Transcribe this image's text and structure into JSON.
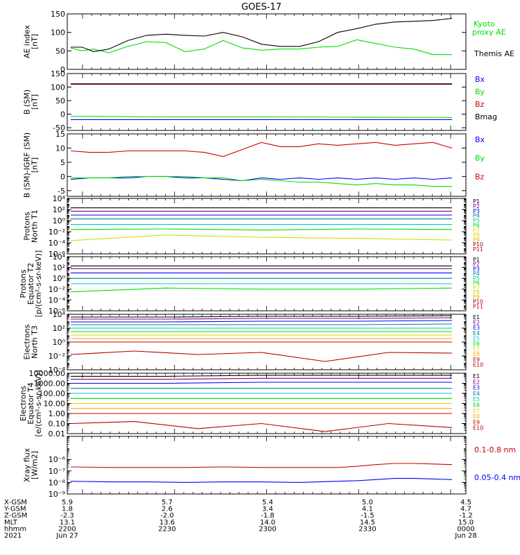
{
  "title": "GOES-17",
  "colors": {
    "frame": "#000000",
    "black": "#000000",
    "blue": "#0000ff",
    "green": "#00dd00",
    "red": "#cc0000",
    "navy": "#000080",
    "purple": "#800080",
    "cyan": "#00c8c8",
    "teal": "#008080",
    "yellow": "#d8d800",
    "orange": "#ffa500",
    "maroon": "#8b0000",
    "dkred": "#b00000"
  },
  "chart_data": [
    {
      "type": "line",
      "id": "ae",
      "ylabel": [
        "AE index",
        "[nT]"
      ],
      "ylim": [
        0,
        150
      ],
      "yticks": [
        "0",
        "50",
        "100",
        "150"
      ],
      "x": [
        0,
        0.03,
        0.06,
        0.1,
        0.15,
        0.2,
        0.25,
        0.3,
        0.35,
        0.4,
        0.45,
        0.5,
        0.55,
        0.6,
        0.65,
        0.7,
        0.75,
        0.8,
        0.85,
        0.9,
        0.95,
        1.0
      ],
      "series": [
        {
          "name": "Kyoto proxy AE",
          "color": "#00dd00",
          "values": [
            58,
            50,
            55,
            45,
            62,
            75,
            72,
            48,
            55,
            78,
            58,
            52,
            55,
            55,
            60,
            62,
            80,
            70,
            60,
            55,
            40,
            40
          ]
        },
        {
          "name": "Themis AE",
          "color": "#000000",
          "values": [
            60,
            60,
            48,
            55,
            78,
            92,
            95,
            92,
            90,
            100,
            88,
            68,
            62,
            62,
            75,
            100,
            110,
            122,
            128,
            130,
            132,
            138
          ]
        }
      ],
      "legend": [
        {
          "text": "Kyoto",
          "color": "#00dd00"
        },
        {
          "text": "proxy AE",
          "color": "#00dd00"
        },
        {
          "text": "Themis AE",
          "color": "#000000"
        }
      ]
    },
    {
      "type": "line",
      "id": "b_sm",
      "ylabel": [
        "B (SM)",
        "[nT]"
      ],
      "ylim": [
        -60,
        150
      ],
      "yticks": [
        "-50",
        "0",
        "50",
        "100",
        "150"
      ],
      "x": [
        0,
        0.25,
        0.5,
        0.75,
        1.0
      ],
      "series": [
        {
          "name": "Bx",
          "color": "#0000ff",
          "values": [
            -20,
            -20,
            -20,
            -20,
            -20
          ]
        },
        {
          "name": "By",
          "color": "#00dd00",
          "values": [
            -8,
            -10,
            -10,
            -11,
            -12
          ]
        },
        {
          "name": "Bz",
          "color": "#cc0000",
          "values": [
            110,
            110,
            110,
            110,
            110
          ]
        },
        {
          "name": "Bmag",
          "color": "#000000",
          "values": [
            112,
            112,
            112,
            112,
            112
          ]
        }
      ],
      "legend": [
        {
          "text": "Bx",
          "color": "#0000ff"
        },
        {
          "text": "By",
          "color": "#00dd00"
        },
        {
          "text": "Bz",
          "color": "#cc0000"
        },
        {
          "text": "Bmag",
          "color": "#000000"
        }
      ]
    },
    {
      "type": "line",
      "id": "b_sm_igrf",
      "ylabel": [
        "B (SM)-IGRF (SM)",
        "[nT]"
      ],
      "ylim": [
        -7,
        15
      ],
      "yticks": [
        "-5",
        "0",
        "5",
        "10",
        "15"
      ],
      "x": [
        0,
        0.05,
        0.1,
        0.15,
        0.2,
        0.25,
        0.3,
        0.35,
        0.4,
        0.45,
        0.5,
        0.55,
        0.6,
        0.65,
        0.7,
        0.75,
        0.8,
        0.85,
        0.9,
        0.95,
        1.0
      ],
      "series": [
        {
          "name": "Bx",
          "color": "#0000ff",
          "values": [
            -1,
            -0.5,
            -0.5,
            -0.5,
            0,
            0,
            -0.5,
            -0.5,
            -1,
            -1.5,
            -0.5,
            -1,
            -0.5,
            -1,
            -0.5,
            -1,
            -0.5,
            -1,
            -0.5,
            -1,
            -0.5
          ]
        },
        {
          "name": "By",
          "color": "#00dd00",
          "values": [
            -0.5,
            -0.5,
            -0.5,
            0,
            0,
            0,
            0,
            -0.5,
            -0.5,
            -1.5,
            -1,
            -1.5,
            -2,
            -2,
            -2.5,
            -3,
            -2.5,
            -3,
            -3,
            -3.5,
            -3.5
          ]
        },
        {
          "name": "Bz",
          "color": "#cc0000",
          "values": [
            9,
            8.5,
            8.5,
            9,
            9,
            9,
            9,
            8.5,
            7,
            9.5,
            12,
            10.5,
            10.5,
            11.5,
            11,
            11.5,
            12,
            11,
            11.5,
            12,
            10
          ]
        }
      ],
      "legend": [
        {
          "text": "Bx",
          "color": "#0000ff"
        },
        {
          "text": "By",
          "color": "#00dd00"
        },
        {
          "text": "Bz",
          "color": "#cc0000"
        }
      ]
    },
    {
      "type": "line",
      "id": "protons_t1",
      "ylabel": [
        "Protons",
        "North T1"
      ],
      "ylog": true,
      "ylim_exp": [
        -6,
        4
      ],
      "yticks": [
        "10⁴",
        "10²",
        "10⁰",
        "10⁻²",
        "10⁻⁴",
        "10⁻⁶"
      ],
      "series": [
        {
          "name": "P1",
          "color": "#000000",
          "log_values": [
            2.3,
            2.3,
            2.3,
            2.3,
            2.3
          ]
        },
        {
          "name": "P2",
          "color": "#800080",
          "log_values": [
            1.7,
            1.7,
            1.7,
            1.7,
            1.7
          ]
        },
        {
          "name": "P3",
          "color": "#0000ff",
          "log_values": [
            1.0,
            1.0,
            1.0,
            1.0,
            1.0
          ]
        },
        {
          "name": "P4",
          "color": "#008080",
          "log_values": [
            0.3,
            0.3,
            0.3,
            0.3,
            0.3
          ]
        },
        {
          "name": "P5",
          "color": "#00c8c8",
          "log_values": [
            -0.7,
            -0.7,
            -0.7,
            -0.7,
            -0.7
          ]
        },
        {
          "name": "P6",
          "color": "#00dd00",
          "log_values": [
            -1.6,
            -1.5,
            -1.7,
            -1.5,
            -1.6
          ]
        },
        {
          "name": "P7",
          "color": "#d8d800",
          "log_values": [
            -3.6,
            -2.6,
            -3.0,
            -3.2,
            -3.5
          ]
        }
      ],
      "legend": [
        {
          "text": "P1",
          "color": "#000000"
        },
        {
          "text": "P2",
          "color": "#800080"
        },
        {
          "text": "P3",
          "color": "#0000ff"
        },
        {
          "text": "P4",
          "color": "#008080"
        },
        {
          "text": "P5",
          "color": "#00c8c8"
        },
        {
          "text": "P6",
          "color": "#00dd00"
        },
        {
          "text": "P7",
          "color": "#d8d800"
        },
        {
          "text": "P8",
          "color": "#d8d800"
        },
        {
          "text": "P9",
          "color": "#ffa500"
        },
        {
          "text": "P10",
          "color": "#8b0000"
        },
        {
          "text": "P11",
          "color": "#cc0000"
        }
      ]
    },
    {
      "type": "line",
      "id": "protons_t2",
      "ylabel": [
        "Protons",
        "Equator T2",
        "[p/(cm²-s-sr-keV)]"
      ],
      "ylog": true,
      "ylim_exp": [
        -6,
        4
      ],
      "yticks": [
        "10⁴",
        "10²",
        "10⁰",
        "10⁻²",
        "10⁻⁴",
        "10⁻⁶"
      ],
      "series": [
        {
          "name": "P1",
          "color": "#000000",
          "log_values": [
            2.3,
            2.3,
            2.3,
            2.3,
            2.3
          ]
        },
        {
          "name": "P2",
          "color": "#800080",
          "log_values": [
            1.8,
            1.8,
            1.8,
            1.8,
            1.8
          ]
        },
        {
          "name": "P3",
          "color": "#0000ff",
          "log_values": [
            1.0,
            1.0,
            1.0,
            1.0,
            1.0
          ]
        },
        {
          "name": "P4",
          "color": "#008080",
          "log_values": [
            0.0,
            0.0,
            0.0,
            0.0,
            0.0
          ]
        },
        {
          "name": "P5",
          "color": "#00c8c8",
          "log_values": [
            -1.0,
            -1.0,
            -1.0,
            -1.0,
            -1.0
          ]
        },
        {
          "name": "P6",
          "color": "#00dd00",
          "log_values": [
            -2.5,
            -1.8,
            -2.0,
            -2.0,
            -1.8
          ]
        }
      ],
      "legend": [
        {
          "text": "P1",
          "color": "#000000"
        },
        {
          "text": "P2",
          "color": "#800080"
        },
        {
          "text": "P3",
          "color": "#0000ff"
        },
        {
          "text": "P4",
          "color": "#008080"
        },
        {
          "text": "P5",
          "color": "#00c8c8"
        },
        {
          "text": "P6",
          "color": "#00dd00"
        },
        {
          "text": "P7",
          "color": "#d8d800"
        },
        {
          "text": "P8",
          "color": "#d8d800"
        },
        {
          "text": "P9",
          "color": "#ffa500"
        },
        {
          "text": "P10",
          "color": "#8b0000"
        },
        {
          "text": "P11",
          "color": "#cc0000"
        }
      ]
    },
    {
      "type": "line",
      "id": "electrons_t3",
      "ylabel": [
        "Electrons",
        "North T3"
      ],
      "ylog": true,
      "ylim_exp": [
        -4,
        4
      ],
      "yticks": [
        "10⁴",
        "10²",
        "10⁰",
        "10⁻²",
        "10⁻⁴"
      ],
      "series": [
        {
          "name": "E1",
          "color": "#000000",
          "log_values": [
            3.6,
            3.6,
            3.7,
            3.7,
            3.8
          ]
        },
        {
          "name": "E2",
          "color": "#800080",
          "log_values": [
            3.3,
            3.3,
            3.4,
            3.4,
            3.5
          ]
        },
        {
          "name": "E3",
          "color": "#0000ff",
          "log_values": [
            2.9,
            2.9,
            3.0,
            3.0,
            3.1
          ]
        },
        {
          "name": "E4",
          "color": "#008080",
          "log_values": [
            2.5,
            2.5,
            2.5,
            2.5,
            2.6
          ]
        },
        {
          "name": "E5",
          "color": "#00c8c8",
          "log_values": [
            2.0,
            2.0,
            2.0,
            2.0,
            2.0
          ]
        },
        {
          "name": "E6",
          "color": "#00dd00",
          "log_values": [
            1.5,
            1.5,
            1.5,
            1.5,
            1.5
          ]
        },
        {
          "name": "E7",
          "color": "#d8d800",
          "log_values": [
            1.0,
            1.0,
            1.0,
            1.0,
            1.0
          ]
        },
        {
          "name": "E8",
          "color": "#ffa500",
          "log_values": [
            0.5,
            0.5,
            0.5,
            0.5,
            0.5
          ]
        },
        {
          "name": "E9",
          "color": "#cc0000",
          "log_values": [
            0.0,
            0.0,
            0.0,
            0.0,
            0.0
          ]
        },
        {
          "name": "E10",
          "color": "#b00000",
          "log_values": [
            -1.8,
            -1.3,
            -1.8,
            -1.5,
            -2.8,
            -1.5,
            -1.6
          ]
        }
      ],
      "legend": [
        {
          "text": "E1",
          "color": "#000000"
        },
        {
          "text": "E2",
          "color": "#800080"
        },
        {
          "text": "E3",
          "color": "#0000ff"
        },
        {
          "text": "E4",
          "color": "#008080"
        },
        {
          "text": "E5",
          "color": "#00c8c8"
        },
        {
          "text": "E6",
          "color": "#00dd00"
        },
        {
          "text": "E7",
          "color": "#d8d800"
        },
        {
          "text": "E8",
          "color": "#ffa500"
        },
        {
          "text": "E9",
          "color": "#cc0000"
        },
        {
          "text": "E10",
          "color": "#b00000"
        }
      ]
    },
    {
      "type": "line",
      "id": "electrons_t4",
      "ylabel": [
        "Electrons",
        "Equator T4",
        "[e/(cm²-s-sr-keV)]"
      ],
      "ylog": true,
      "ylim_exp": [
        -2,
        4
      ],
      "yticks": [
        "10000.00",
        "1000.00",
        "100.00",
        "10.00",
        "1.00",
        "0.10",
        "0.01"
      ],
      "series": [
        {
          "name": "E1",
          "color": "#000000",
          "log_values": [
            3.7,
            3.7,
            3.8,
            3.8,
            3.8
          ]
        },
        {
          "name": "E2",
          "color": "#800080",
          "log_values": [
            3.4,
            3.4,
            3.5,
            3.5,
            3.5
          ]
        },
        {
          "name": "E3",
          "color": "#0000ff",
          "log_values": [
            3.0,
            3.0,
            3.1,
            3.1,
            3.1
          ]
        },
        {
          "name": "E4",
          "color": "#008080",
          "log_values": [
            2.5,
            2.5,
            2.5,
            2.5,
            2.5
          ]
        },
        {
          "name": "E5",
          "color": "#00c8c8",
          "log_values": [
            2.0,
            2.0,
            2.0,
            2.0,
            2.0
          ]
        },
        {
          "name": "E6",
          "color": "#00dd00",
          "log_values": [
            1.5,
            1.5,
            1.5,
            1.5,
            1.5
          ]
        },
        {
          "name": "E7",
          "color": "#d8d800",
          "log_values": [
            1.0,
            1.0,
            1.0,
            1.0,
            1.0
          ]
        },
        {
          "name": "E8",
          "color": "#ffa500",
          "log_values": [
            0.5,
            0.5,
            0.5,
            0.5,
            0.5
          ]
        },
        {
          "name": "E9",
          "color": "#cc0000",
          "log_values": [
            0.0,
            0.0,
            0.0,
            0.0,
            0.0
          ]
        },
        {
          "name": "E10",
          "color": "#b00000",
          "log_values": [
            -1.0,
            -0.8,
            -1.5,
            -1.0,
            -1.8,
            -1.0,
            -1.4
          ]
        }
      ],
      "legend": [
        {
          "text": "E1",
          "color": "#000000"
        },
        {
          "text": "E2",
          "color": "#800080"
        },
        {
          "text": "E3",
          "color": "#0000ff"
        },
        {
          "text": "E4",
          "color": "#008080"
        },
        {
          "text": "E5",
          "color": "#00c8c8"
        },
        {
          "text": "E6",
          "color": "#00dd00"
        },
        {
          "text": "E7",
          "color": "#d8d800"
        },
        {
          "text": "E8",
          "color": "#ffa500"
        },
        {
          "text": "E9",
          "color": "#cc0000"
        },
        {
          "text": "E10",
          "color": "#b00000"
        }
      ]
    },
    {
      "type": "line",
      "id": "xray",
      "ylabel": [
        "Xray flux",
        "[W/m2]"
      ],
      "ylog": true,
      "ylim_exp": [
        -9,
        -4
      ],
      "yticks": [
        "10⁻⁸",
        "10⁻⁷",
        "10⁻⁶",
        "10⁻⁹"
      ],
      "ytick_exps": [
        -8,
        -7,
        -6,
        -9
      ],
      "x": [
        0,
        0.1,
        0.2,
        0.3,
        0.4,
        0.5,
        0.6,
        0.7,
        0.75,
        0.8,
        0.85,
        0.9,
        0.95,
        1.0
      ],
      "series": [
        {
          "name": "0.1-0.8 nm",
          "color": "#cc0000",
          "log_values": [
            -6.65,
            -6.7,
            -6.7,
            -6.7,
            -6.65,
            -6.7,
            -6.7,
            -6.7,
            -6.6,
            -6.45,
            -6.35,
            -6.35,
            -6.4,
            -6.45
          ]
        },
        {
          "name": "0.05-0.4 nm",
          "color": "#0000ff",
          "log_values": [
            -7.9,
            -7.95,
            -7.95,
            -8.0,
            -7.95,
            -7.95,
            -8.0,
            -7.9,
            -7.85,
            -7.75,
            -7.65,
            -7.65,
            -7.7,
            -7.75
          ]
        }
      ],
      "legend": [
        {
          "text": "0.1-0.8 nm",
          "color": "#cc0000"
        },
        {
          "text": "0.05-0.4 nm",
          "color": "#0000ff"
        }
      ]
    }
  ],
  "footer": {
    "rows": [
      "X-GSM",
      "Y-GSM",
      "Z-GSM",
      "MLT",
      "hhmm",
      "2021"
    ],
    "columns": [
      [
        "5.9",
        "1.8",
        "-2.3",
        "13.1",
        "2200",
        "Jun 27"
      ],
      [
        "5.7",
        "2.6",
        "-2.0",
        "13.6",
        "2230",
        ""
      ],
      [
        "5.4",
        "3.4",
        "-1.8",
        "14.0",
        "2300",
        ""
      ],
      [
        "5.0",
        "4.1",
        "-1.5",
        "14.5",
        "2330",
        ""
      ],
      [
        "4.5",
        "4.7",
        "-1.2",
        "15.0",
        "0000",
        "Jun 28"
      ]
    ]
  }
}
